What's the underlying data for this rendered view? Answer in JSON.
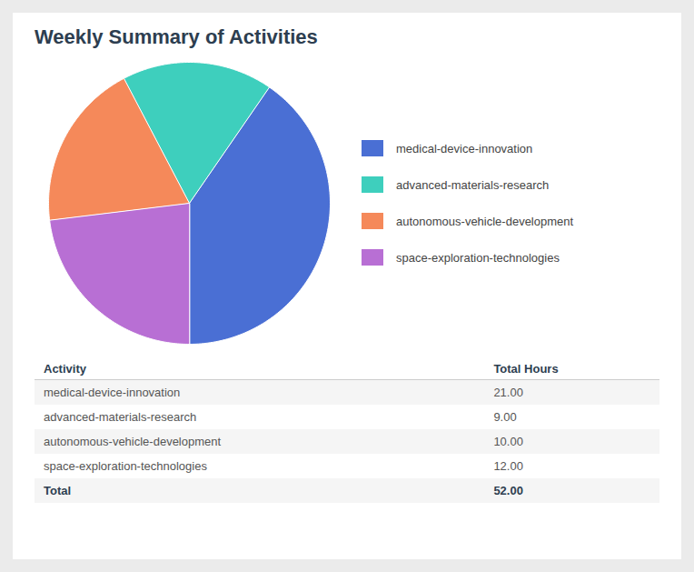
{
  "chart_data": {
    "type": "pie",
    "title": "Weekly Summary of Activities",
    "categories": [
      "medical-device-innovation",
      "advanced-materials-research",
      "autonomous-vehicle-development",
      "space-exploration-technologies"
    ],
    "values": [
      21.0,
      9.0,
      10.0,
      12.0
    ],
    "value_labels": [
      "21.00",
      "9.00",
      "10.00",
      "12.00"
    ],
    "colors": [
      "#4A6FD4",
      "#3ECFBD",
      "#F5895A",
      "#B86FD4"
    ],
    "legend": "right",
    "table": {
      "headers": [
        "Activity",
        "Total Hours"
      ],
      "total_name": "Total",
      "total": 52.0,
      "total_label": "52.00"
    }
  }
}
